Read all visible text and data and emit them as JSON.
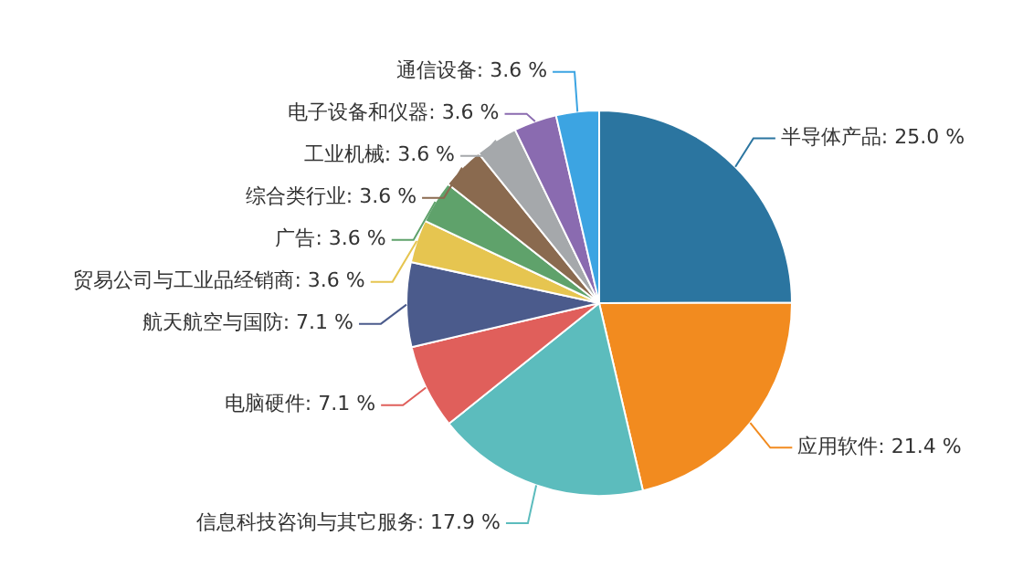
{
  "chart_data": {
    "type": "pie",
    "categories": [
      "半导体产品",
      "应用软件",
      "信息科技咨询与其它服务",
      "电脑硬件",
      "航天航空与国防",
      "贸易公司与工业品经销商",
      "广告",
      "综合类行业",
      "工业机械",
      "电子设备和仪器",
      "通信设备"
    ],
    "values": [
      25.0,
      21.4,
      17.9,
      7.1,
      7.1,
      3.6,
      3.6,
      3.6,
      3.6,
      3.6,
      3.6
    ],
    "value_labels": [
      "25.0 %",
      "21.4 %",
      "17.9 %",
      "7.1 %",
      "7.1 %",
      "3.6 %",
      "3.6 %",
      "3.6 %",
      "3.6 %",
      "3.6 %",
      "3.6 %"
    ],
    "colors": [
      "#2b75a0",
      "#f28b1f",
      "#5cbcbd",
      "#e05f5b",
      "#4b5b8c",
      "#e6c550",
      "#5fa26b",
      "#8a6a4f",
      "#a5a8ab",
      "#8a6bb0",
      "#3ca4e2"
    ],
    "legend": false
  }
}
